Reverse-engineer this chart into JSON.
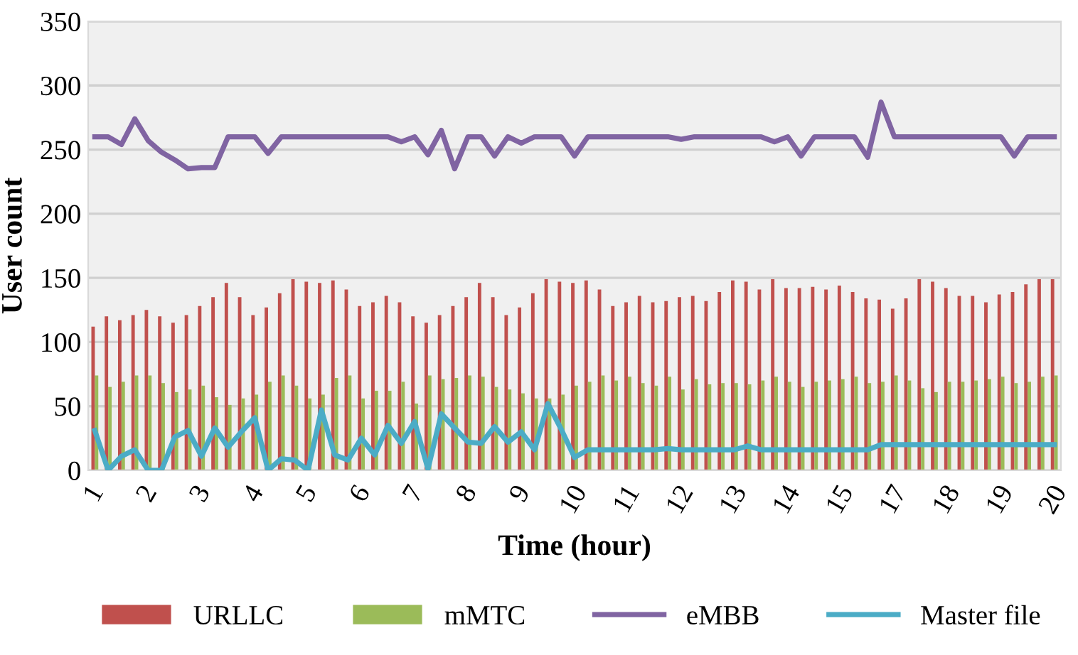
{
  "chart_data": {
    "type": "bar",
    "xlabel": "Time (hour)",
    "ylabel": "User count",
    "categories": [
      "1",
      null,
      null,
      null,
      "2",
      null,
      null,
      null,
      "3",
      null,
      null,
      null,
      "4",
      null,
      null,
      null,
      "5",
      null,
      null,
      null,
      "6",
      null,
      null,
      null,
      "7",
      null,
      null,
      null,
      "8",
      null,
      null,
      null,
      "9",
      null,
      null,
      null,
      "10",
      null,
      null,
      null,
      "11",
      null,
      null,
      null,
      "12",
      null,
      null,
      null,
      "13",
      null,
      null,
      null,
      "14",
      null,
      null,
      null,
      "15",
      null,
      null,
      null,
      "17",
      null,
      null,
      null,
      "18",
      null,
      null,
      null,
      "19",
      null,
      null,
      null,
      "20"
    ],
    "series": [
      {
        "name": "URLLC",
        "color": "#c0504d",
        "values": [
          112,
          120,
          117,
          121,
          125,
          120,
          115,
          121,
          128,
          135,
          146,
          135,
          121,
          127,
          138,
          149,
          147,
          146,
          148,
          141,
          128,
          131,
          136,
          131,
          120,
          115,
          121,
          128,
          135,
          146,
          135,
          121,
          127,
          138,
          149,
          147,
          146,
          148,
          141,
          128,
          131,
          136,
          131,
          132,
          135,
          136,
          132,
          139,
          148,
          147,
          141,
          149,
          142,
          142,
          143,
          141,
          144,
          139,
          134,
          133,
          126,
          134,
          149,
          147,
          142,
          136,
          136,
          131,
          137,
          139,
          145,
          149,
          149
        ]
      },
      {
        "name": "mMTC",
        "color": "#9bbb59",
        "values": [
          74,
          65,
          69,
          74,
          74,
          68,
          61,
          63,
          66,
          57,
          51,
          56,
          59,
          69,
          74,
          66,
          56,
          59,
          72,
          74,
          56,
          62,
          62,
          69,
          52,
          74,
          71,
          72,
          74,
          73,
          65,
          63,
          60,
          56,
          56,
          59,
          66,
          69,
          74,
          70,
          73,
          68,
          66,
          73,
          63,
          71,
          67,
          68,
          68,
          67,
          70,
          73,
          69,
          65,
          69,
          70,
          71,
          73,
          68,
          69,
          74,
          70,
          64,
          61,
          69,
          69,
          70,
          71,
          73,
          68,
          69,
          73,
          74
        ]
      },
      {
        "name": "eMBB",
        "type": "line",
        "color": "#8064a2",
        "values": [
          260,
          260,
          254,
          274,
          257,
          248,
          242,
          235,
          236,
          236,
          260,
          260,
          260,
          247,
          260,
          260,
          260,
          260,
          260,
          260,
          260,
          260,
          260,
          256,
          260,
          246,
          265,
          235,
          260,
          260,
          245,
          260,
          255,
          260,
          260,
          260,
          245,
          260,
          260,
          260,
          260,
          260,
          260,
          260,
          258,
          260,
          260,
          260,
          260,
          260,
          260,
          256,
          260,
          245,
          260,
          260,
          260,
          260,
          244,
          287,
          260,
          260,
          260,
          260,
          260,
          260,
          260,
          260,
          260,
          245,
          260,
          260,
          260
        ]
      },
      {
        "name": "Master file",
        "type": "line",
        "color": "#4bacc6",
        "values": [
          31,
          0,
          11,
          16,
          0,
          0,
          26,
          31,
          11,
          33,
          18,
          30,
          41,
          0,
          9,
          8,
          0,
          47,
          12,
          8,
          25,
          12,
          35,
          21,
          38,
          1,
          44,
          33,
          22,
          21,
          34,
          22,
          30,
          16,
          52,
          32,
          10,
          16,
          16,
          16,
          16,
          16,
          16,
          17,
          16,
          16,
          16,
          16,
          16,
          19,
          16,
          16,
          16,
          16,
          16,
          16,
          16,
          16,
          16,
          20,
          20,
          20,
          20,
          20,
          20,
          20,
          20,
          20,
          20,
          20,
          20,
          20,
          20
        ]
      }
    ],
    "ylim": [
      0,
      350
    ],
    "yticks": [
      0,
      50,
      100,
      150,
      200,
      250,
      300,
      350
    ],
    "grid": "y",
    "legend": "bottom"
  }
}
